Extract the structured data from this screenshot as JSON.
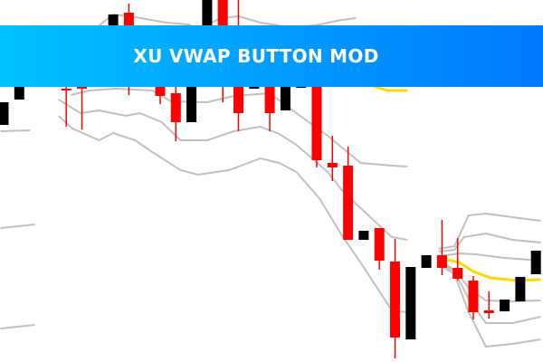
{
  "banner": {
    "title": "XU VWAP BUTTON MOD",
    "gradient_start": "#00c2ff",
    "gradient_end": "#0078ff"
  },
  "chart_data": {
    "type": "candlestick",
    "title": "",
    "grid": false,
    "axes_visible": false,
    "colors": {
      "bull": "#000000",
      "bear": "#ff0000",
      "band": "#c0c0c0",
      "vwap": "#ffd800"
    },
    "candles": [
      {
        "t": 0,
        "o": 262,
        "h": 287,
        "l": 262,
        "c": 287
      },
      {
        "t": 1,
        "o": 290,
        "h": 305,
        "l": 290,
        "c": 305
      },
      {
        "t": 4,
        "o": 302,
        "h": 305,
        "l": 260,
        "c": 300
      },
      {
        "t": 5,
        "o": 305,
        "h": 305,
        "l": 257,
        "c": 302
      },
      {
        "t": 7,
        "o": 372,
        "h": 384,
        "l": 372,
        "c": 384
      },
      {
        "t": 8,
        "o": 386,
        "h": 396,
        "l": 295,
        "c": 305
      },
      {
        "t": 10,
        "o": 305,
        "h": 305,
        "l": 285,
        "c": 294
      },
      {
        "t": 11,
        "o": 297,
        "h": 305,
        "l": 244,
        "c": 265
      },
      {
        "t": 12,
        "o": 265,
        "h": 305,
        "l": 265,
        "c": 305
      },
      {
        "t": 13,
        "o": 372,
        "h": 400,
        "l": 372,
        "c": 400
      },
      {
        "t": 14,
        "o": 400,
        "h": 400,
        "l": 287,
        "c": 372
      },
      {
        "t": 15,
        "o": 305,
        "h": 400,
        "l": 255,
        "c": 275
      },
      {
        "t": 16,
        "o": 302,
        "h": 305,
        "l": 302,
        "c": 305
      },
      {
        "t": 17,
        "o": 305,
        "h": 305,
        "l": 255,
        "c": 275
      },
      {
        "t": 18,
        "o": 278,
        "h": 305,
        "l": 278,
        "c": 305
      },
      {
        "t": 19,
        "o": 303,
        "h": 305,
        "l": 303,
        "c": 305
      },
      {
        "t": 20,
        "o": 305,
        "h": 305,
        "l": 215,
        "c": 223
      },
      {
        "t": 21,
        "o": 220,
        "h": 250,
        "l": 200,
        "c": 215
      },
      {
        "t": 22,
        "o": 217,
        "h": 238,
        "l": 135,
        "c": 135
      },
      {
        "t": 23,
        "o": 135,
        "h": 145,
        "l": 135,
        "c": 145
      },
      {
        "t": 24,
        "o": 148,
        "h": 148,
        "l": 102,
        "c": 112
      },
      {
        "t": 25,
        "o": 111,
        "h": 136,
        "l": 4,
        "c": 27
      },
      {
        "t": 26,
        "o": 25,
        "h": 105,
        "l": 25,
        "c": 105
      },
      {
        "t": 27,
        "o": 104,
        "h": 118,
        "l": 104,
        "c": 118
      },
      {
        "t": 28,
        "o": 118,
        "h": 157,
        "l": 96,
        "c": 104
      },
      {
        "t": 29,
        "o": 104,
        "h": 137,
        "l": 90,
        "c": 92
      },
      {
        "t": 30,
        "o": 90,
        "h": 95,
        "l": 47,
        "c": 55
      },
      {
        "t": 31,
        "o": 57,
        "h": 78,
        "l": 48,
        "c": 54
      },
      {
        "t": 32,
        "o": 56,
        "h": 69,
        "l": 56,
        "c": 69
      },
      {
        "t": 33,
        "o": 67,
        "h": 94,
        "l": 67,
        "c": 94
      },
      {
        "t": 34,
        "o": 97,
        "h": 123,
        "l": 97,
        "c": 123
      }
    ],
    "bands": [
      [
        [
          -0.2,
          255
        ],
        [
          1.7,
          256
        ]
      ],
      [
        [
          -0.2,
          148
        ],
        [
          2.0,
          152
        ]
      ],
      [
        [
          -0.2,
          37
        ],
        [
          2.0,
          41
        ]
      ],
      [
        [
          6.1,
          372
        ],
        [
          7.0,
          384
        ],
        [
          8.1,
          382
        ],
        [
          10.4,
          375
        ],
        [
          11.8,
          373
        ],
        [
          12.4,
          368
        ],
        [
          13.9,
          380
        ],
        [
          15.0,
          382
        ],
        [
          16.4,
          375
        ],
        [
          18.2,
          370
        ],
        [
          19.9,
          372
        ],
        [
          21.6,
          378
        ],
        [
          22.5,
          380
        ]
      ],
      [
        [
          4.3,
          295
        ],
        [
          5.5,
          300
        ],
        [
          7.2,
          302
        ],
        [
          9.5,
          300
        ],
        [
          10.7,
          288
        ],
        [
          13.0,
          287
        ],
        [
          14.7,
          294
        ],
        [
          17.0,
          297
        ],
        [
          18.7,
          275
        ],
        [
          20.7,
          250
        ],
        [
          22.8,
          220
        ],
        [
          24.8,
          217
        ],
        [
          25.8,
          216
        ]
      ],
      [
        [
          3.5,
          290
        ],
        [
          4.9,
          275
        ],
        [
          6.1,
          278
        ],
        [
          7.8,
          272
        ],
        [
          8.7,
          275
        ],
        [
          10.1,
          265
        ],
        [
          11.3,
          245
        ],
        [
          13.0,
          245
        ],
        [
          14.7,
          255
        ],
        [
          16.4,
          260
        ],
        [
          17.6,
          252
        ],
        [
          18.7,
          240
        ],
        [
          20.7,
          210
        ],
        [
          21.6,
          190
        ],
        [
          22.8,
          170
        ],
        [
          24.8,
          138
        ],
        [
          25.8,
          135
        ]
      ],
      [
        [
          3.5,
          272
        ],
        [
          4.4,
          258
        ],
        [
          6.1,
          245
        ],
        [
          7.0,
          253
        ],
        [
          8.4,
          245
        ],
        [
          9.5,
          232
        ],
        [
          11.3,
          212
        ],
        [
          12.4,
          207
        ],
        [
          14.4,
          212
        ],
        [
          16.4,
          225
        ],
        [
          17.6,
          220
        ],
        [
          18.7,
          210
        ],
        [
          20.2,
          180
        ],
        [
          21.6,
          140
        ],
        [
          22.8,
          110
        ],
        [
          24.8,
          57
        ],
        [
          25.8,
          55
        ]
      ],
      [
        [
          27.8,
          125
        ],
        [
          28.8,
          128
        ],
        [
          29.7,
          162
        ],
        [
          30.8,
          164
        ],
        [
          32.5,
          160
        ],
        [
          34.3,
          156
        ]
      ],
      [
        [
          27.8,
          122
        ],
        [
          28.8,
          124
        ],
        [
          29.4,
          138
        ],
        [
          30.8,
          142
        ],
        [
          32.5,
          135
        ],
        [
          34.3,
          132
        ]
      ],
      [
        [
          27.8,
          117
        ],
        [
          29.1,
          120
        ],
        [
          30.2,
          119
        ],
        [
          32.0,
          115
        ],
        [
          34.3,
          112
        ]
      ],
      [
        [
          27.8,
          112
        ],
        [
          28.8,
          102
        ],
        [
          29.7,
          82
        ],
        [
          30.8,
          68
        ],
        [
          32.5,
          67
        ],
        [
          34.3,
          68
        ]
      ],
      [
        [
          27.8,
          110
        ],
        [
          28.8,
          100
        ],
        [
          29.7,
          70
        ],
        [
          30.8,
          43
        ],
        [
          32.5,
          43
        ],
        [
          34.3,
          50
        ]
      ],
      [
        [
          27.8,
          108
        ],
        [
          28.8,
          97
        ],
        [
          29.7,
          55
        ],
        [
          30.8,
          17
        ],
        [
          32.5,
          20
        ],
        [
          34.3,
          25
        ]
      ]
    ],
    "vwap": [
      [
        [
          23.6,
          305
        ],
        [
          24.5,
          300
        ],
        [
          25.8,
          300
        ]
      ],
      [
        [
          27.8,
          115
        ],
        [
          29.1,
          110
        ],
        [
          30.0,
          100
        ],
        [
          31.1,
          93
        ],
        [
          32.8,
          90
        ],
        [
          34.3,
          91
        ]
      ]
    ]
  }
}
